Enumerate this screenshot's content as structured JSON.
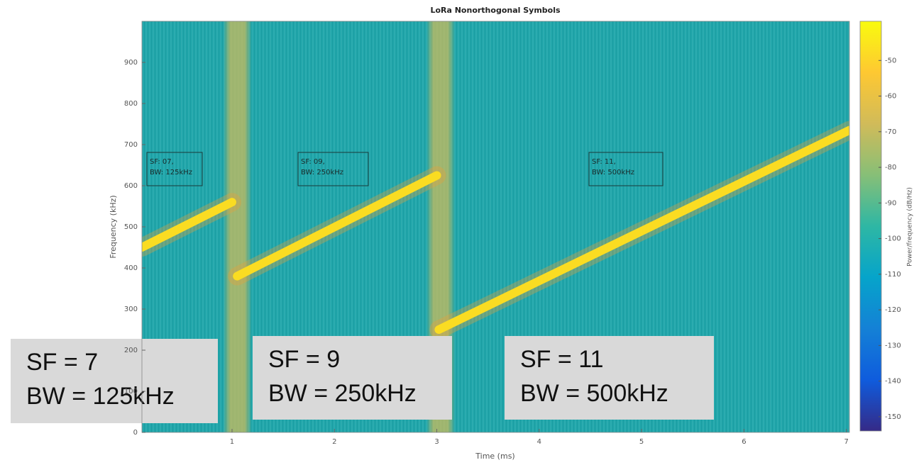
{
  "chart_data": {
    "type": "spectrogram",
    "title": "LoRa Nonorthogonal Symbols",
    "x_label": "Time (ms)",
    "y_label": "Frequency (kHz)",
    "colorbar_label": "Power/frequency (dB/Hz)",
    "xlim": [
      0.12,
      7.03
    ],
    "xticks": [
      1,
      2,
      3,
      4,
      5,
      6,
      7
    ],
    "ylim": [
      0,
      1000
    ],
    "yticks": [
      0,
      100,
      200,
      300,
      400,
      500,
      600,
      700,
      800,
      900
    ],
    "clim": [
      -154,
      -39
    ],
    "cticks": [
      -150,
      -140,
      -130,
      -120,
      -110,
      -100,
      -90,
      -80,
      -70,
      -60,
      -50
    ],
    "colormap": [
      "#352a87",
      "#0f5cdd",
      "#1481d6",
      "#06a4ca",
      "#2eb7a4",
      "#87bf77",
      "#d1bb59",
      "#fec832",
      "#f9fb0e"
    ],
    "background_color": "#1fa6aa",
    "chirp_color": "#fadc22",
    "chirps": [
      {
        "x": [
          0.12,
          1.0
        ],
        "y": [
          450,
          560
        ]
      },
      {
        "x": [
          1.05,
          3.0
        ],
        "y": [
          380,
          625
        ]
      },
      {
        "x": [
          3.02,
          7.03
        ],
        "y": [
          250,
          735
        ]
      }
    ],
    "annotations": [
      {
        "lines": [
          "SF: 07,",
          "BW: 125kHz"
        ]
      },
      {
        "lines": [
          "SF: 09,",
          "BW: 250kHz"
        ]
      },
      {
        "lines": [
          "SF: 11,",
          "BW: 500kHz"
        ]
      }
    ],
    "callouts": [
      {
        "lines": [
          "SF = 7",
          "BW = 125kHz"
        ]
      },
      {
        "lines": [
          "SF = 9",
          "BW = 250kHz"
        ]
      },
      {
        "lines": [
          "SF = 11",
          "BW = 500kHz"
        ]
      }
    ]
  }
}
